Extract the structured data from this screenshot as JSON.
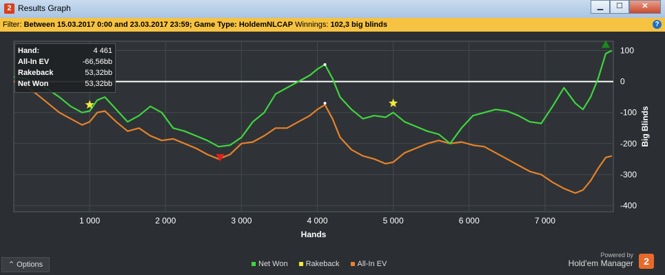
{
  "window": {
    "title": "Results Graph",
    "app_icon": "2",
    "buttons": {
      "minimize": "▁",
      "maximize": "☐",
      "close": "✕"
    }
  },
  "filter": {
    "prefix": "Filter:",
    "text": "Between 15.03.2017 0:00 and 23.03.2017 23:59; Game Type: HoldemNLCAP",
    "winnings_label": "Winnings:",
    "winnings_value": "102,3 big blinds",
    "help_icon": "?"
  },
  "tooltip": {
    "rows": [
      {
        "label": "Hand:",
        "value": "4 461"
      },
      {
        "label": "All-In EV",
        "value": "-66,56bb"
      },
      {
        "label": "Rakeback",
        "value": "53,32bb"
      },
      {
        "label": "Net Won",
        "value": "53,32bb"
      }
    ]
  },
  "options_label": "⌃  Options",
  "legend": [
    {
      "label": "Net Won",
      "color": "#3fd63f"
    },
    {
      "label": "Rakeback",
      "color": "#f2e83a"
    },
    {
      "label": "All-In EV",
      "color": "#e8822a"
    }
  ],
  "branding": {
    "powered_by": "Powered by",
    "name": "Hold'em Manager",
    "logo": "2"
  },
  "chart_data": {
    "type": "line",
    "xlabel": "Hands",
    "ylabel": "Big Blinds",
    "xlim": [
      0,
      7900
    ],
    "ylim": [
      -420,
      130
    ],
    "x_ticks": [
      {
        "value": 1000,
        "label": "1 000"
      },
      {
        "value": 2000,
        "label": "2 000"
      },
      {
        "value": 3000,
        "label": "3 000"
      },
      {
        "value": 4000,
        "label": "4 000"
      },
      {
        "value": 5000,
        "label": "5 000"
      },
      {
        "value": 6000,
        "label": "6 000"
      },
      {
        "value": 7000,
        "label": "7 000"
      }
    ],
    "y_ticks": [
      {
        "value": 100,
        "label": "100"
      },
      {
        "value": 0,
        "label": "0"
      },
      {
        "value": -100,
        "label": "-100"
      },
      {
        "value": -200,
        "label": "-200"
      },
      {
        "value": -300,
        "label": "-300"
      },
      {
        "value": -400,
        "label": "-400"
      }
    ],
    "grid": true,
    "legend_position": "bottom",
    "series": [
      {
        "name": "Net Won",
        "color": "#3fd63f",
        "x": [
          0,
          150,
          300,
          450,
          600,
          750,
          900,
          1000,
          1100,
          1200,
          1350,
          1500,
          1650,
          1800,
          1950,
          2100,
          2250,
          2400,
          2550,
          2700,
          2850,
          3000,
          3150,
          3300,
          3450,
          3600,
          3750,
          3900,
          4000,
          4100,
          4200,
          4300,
          4450,
          4600,
          4750,
          4900,
          5000,
          5150,
          5300,
          5450,
          5600,
          5750,
          5900,
          6050,
          6200,
          6350,
          6500,
          6650,
          6800,
          6950,
          7100,
          7250,
          7400,
          7500,
          7600,
          7700,
          7800,
          7880
        ],
        "y": [
          15,
          10,
          -5,
          -25,
          -50,
          -80,
          -100,
          -95,
          -60,
          -50,
          -90,
          -130,
          -110,
          -80,
          -100,
          -150,
          -160,
          -175,
          -190,
          -210,
          -205,
          -180,
          -130,
          -100,
          -40,
          -20,
          0,
          20,
          40,
          55,
          10,
          -50,
          -90,
          -120,
          -110,
          -115,
          -100,
          -130,
          -145,
          -160,
          -170,
          -200,
          -150,
          -110,
          -100,
          -90,
          -95,
          -110,
          -130,
          -135,
          -80,
          -20,
          -70,
          -90,
          -50,
          10,
          90,
          100
        ]
      },
      {
        "name": "All-In EV",
        "color": "#e8822a",
        "x": [
          0,
          150,
          300,
          450,
          600,
          750,
          900,
          1000,
          1100,
          1200,
          1350,
          1500,
          1650,
          1800,
          1950,
          2100,
          2250,
          2400,
          2550,
          2700,
          2850,
          3000,
          3150,
          3300,
          3450,
          3600,
          3750,
          3900,
          4000,
          4100,
          4200,
          4300,
          4450,
          4600,
          4750,
          4900,
          5000,
          5150,
          5300,
          5450,
          5600,
          5750,
          5900,
          6050,
          6200,
          6350,
          6500,
          6650,
          6800,
          6950,
          7100,
          7250,
          7400,
          7500,
          7600,
          7700,
          7800,
          7880
        ],
        "y": [
          0,
          -15,
          -40,
          -70,
          -100,
          -120,
          -140,
          -130,
          -100,
          -95,
          -130,
          -160,
          -150,
          -175,
          -190,
          -185,
          -200,
          -215,
          -235,
          -250,
          -235,
          -200,
          -195,
          -175,
          -150,
          -150,
          -130,
          -110,
          -90,
          -75,
          -120,
          -180,
          -220,
          -240,
          -250,
          -265,
          -260,
          -230,
          -215,
          -200,
          -190,
          -200,
          -195,
          -205,
          -210,
          -230,
          -250,
          -270,
          -290,
          -300,
          -325,
          -345,
          -360,
          -350,
          -320,
          -280,
          -245,
          -240
        ]
      }
    ],
    "markers": [
      {
        "kind": "star",
        "color": "#f2e83a",
        "x": 1000,
        "y": -75
      },
      {
        "kind": "star",
        "color": "#f2e83a",
        "x": 5000,
        "y": -70
      },
      {
        "kind": "triangle-down",
        "color": "#e02020",
        "x": 2720,
        "y": -245
      },
      {
        "kind": "triangle-up",
        "color": "#1a8a1a",
        "x": 7800,
        "y": 120
      },
      {
        "kind": "dot",
        "color": "#ffffff",
        "x": 4100,
        "y": 55
      },
      {
        "kind": "dot",
        "color": "#ffffff",
        "x": 4100,
        "y": -70
      }
    ]
  }
}
